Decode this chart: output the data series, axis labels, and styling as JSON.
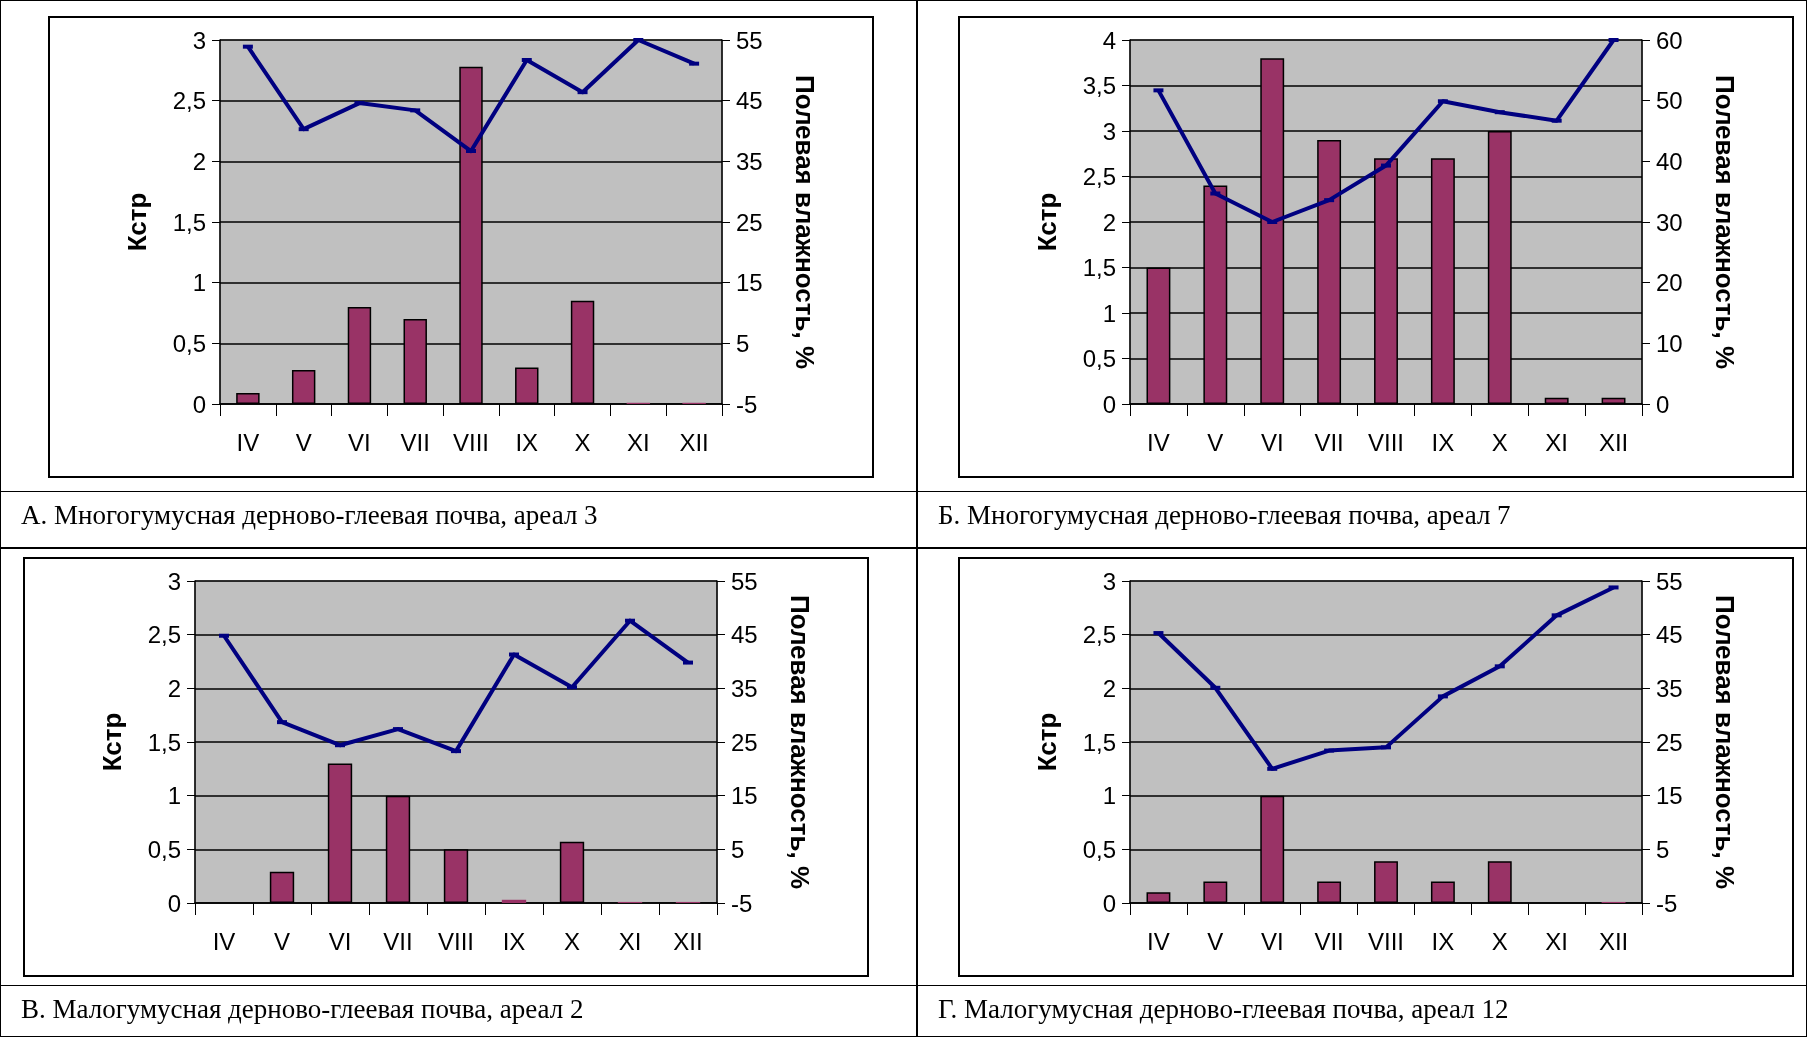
{
  "chart_data": [
    {
      "type": "bar",
      "title": "А. Многогумусная дерново-глеевая почва, ареал 3",
      "ylabel": "Кстр",
      "y2label": "Полевая влажность, %",
      "categories": [
        "IV",
        "V",
        "VI",
        "VII",
        "VIII",
        "IX",
        "X",
        "XI",
        "XII"
      ],
      "series": [
        {
          "color": "#993366",
          "values": [
            0.09,
            0.28,
            0.8,
            0.7,
            2.78,
            0.3,
            0.85,
            0.01,
            0.01
          ]
        },
        {
          "type": "line",
          "axis": "y2",
          "color": "#000080",
          "marker": "square",
          "values": [
            53.9,
            40.3,
            44.6,
            43.4,
            36.7,
            51.7,
            46.4,
            55,
            51.1
          ]
        }
      ],
      "ylim": [
        0,
        3
      ],
      "yticks": [
        0,
        {
          "value": 0.5,
          "label": "0,5"
        },
        1,
        {
          "value": 1.5,
          "label": "1,5"
        },
        2,
        {
          "value": 2.5,
          "label": "2,5"
        },
        3
      ],
      "y2lim": [
        -5,
        55
      ],
      "y2ticks": [
        -5,
        5,
        15,
        25,
        35,
        45,
        55
      ],
      "grid": "y"
    },
    {
      "type": "bar",
      "title": "Б. Многогумусная дерново-глеевая почва, ареал 7",
      "ylabel": "Кстр",
      "y2label": "Полевая влажность, %",
      "categories": [
        "IV",
        "V",
        "VI",
        "VII",
        "VIII",
        "IX",
        "X",
        "XI",
        "XII"
      ],
      "series": [
        {
          "color": "#993366",
          "values": [
            1.5,
            2.4,
            3.8,
            2.9,
            2.7,
            2.7,
            3.0,
            0.07,
            0.07
          ]
        },
        {
          "type": "line",
          "axis": "y2",
          "color": "#000080",
          "marker": "square",
          "values": [
            51.7,
            34.7,
            30.0,
            33.6,
            39.3,
            49.9,
            48.1,
            46.7,
            60
          ]
        }
      ],
      "ylim": [
        0,
        4
      ],
      "yticks": [
        0,
        {
          "value": 0.5,
          "label": "0,5"
        },
        1,
        {
          "value": 1.5,
          "label": "1,5"
        },
        2,
        {
          "value": 2.5,
          "label": "2,5"
        },
        3,
        {
          "value": 3.5,
          "label": "3,5"
        },
        4
      ],
      "y2lim": [
        0,
        60
      ],
      "y2ticks": [
        0,
        10,
        20,
        30,
        40,
        50,
        60
      ],
      "grid": "y"
    },
    {
      "type": "bar",
      "title": "В. Малогумусная дерново-глеевая почва, ареал 2",
      "ylabel": "Кстр",
      "y2label": "Полевая влажность, %",
      "categories": [
        "IV",
        "V",
        "VI",
        "VII",
        "VIII",
        "IX",
        "X",
        "XI",
        "XII"
      ],
      "series": [
        {
          "color": "#993366",
          "values": [
            0,
            0.29,
            1.3,
            1.0,
            0.5,
            0.03,
            0.57,
            0.01,
            0.01
          ]
        },
        {
          "type": "line",
          "axis": "y2",
          "color": "#000080",
          "marker": "square",
          "values": [
            44.8,
            28.7,
            24.4,
            27.4,
            23.3,
            41.3,
            35.2,
            47.6,
            39.8
          ]
        }
      ],
      "ylim": [
        0,
        3
      ],
      "yticks": [
        0,
        {
          "value": 0.5,
          "label": "0,5"
        },
        1,
        {
          "value": 1.5,
          "label": "1,5"
        },
        2,
        {
          "value": 2.5,
          "label": "2,5"
        },
        3
      ],
      "y2lim": [
        -5,
        55
      ],
      "y2ticks": [
        -5,
        5,
        15,
        25,
        35,
        45,
        55
      ],
      "grid": "y"
    },
    {
      "type": "bar",
      "title": "Г. Малогумусная дерново-глеевая почва, ареал 12",
      "ylabel": "Кстр",
      "y2label": "Полевая влажность, %",
      "categories": [
        "IV",
        "V",
        "VI",
        "VII",
        "VIII",
        "IX",
        "X",
        "XI",
        "XII"
      ],
      "series": [
        {
          "color": "#993366",
          "values": [
            0.1,
            0.2,
            1.0,
            0.2,
            0.39,
            0.2,
            0.39,
            0,
            0.01
          ]
        },
        {
          "type": "line",
          "axis": "y2",
          "color": "#000080",
          "marker": "square",
          "values": [
            45.3,
            35.1,
            20.0,
            23.4,
            24.0,
            33.5,
            39.1,
            48.6,
            53.8
          ]
        }
      ],
      "ylim": [
        0,
        3
      ],
      "yticks": [
        0,
        {
          "value": 0.5,
          "label": "0,5"
        },
        1,
        {
          "value": 1.5,
          "label": "1,5"
        },
        2,
        {
          "value": 2.5,
          "label": "2,5"
        },
        3
      ],
      "y2lim": [
        -5,
        55
      ],
      "y2ticks": [
        -5,
        5,
        15,
        25,
        35,
        45,
        55
      ],
      "grid": "y"
    }
  ]
}
